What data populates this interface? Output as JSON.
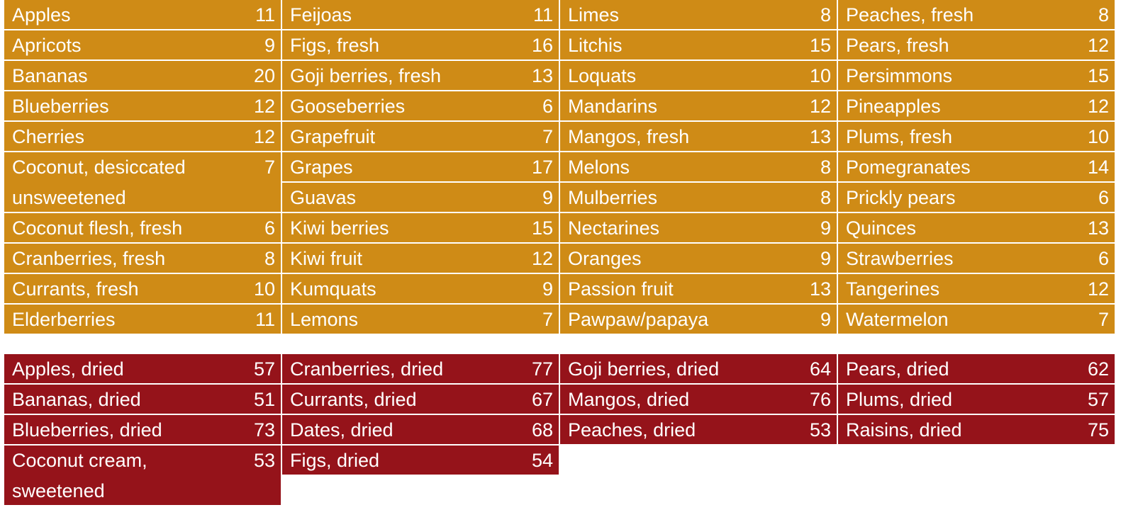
{
  "fresh": [
    [
      {
        "name": "Apples",
        "value": "11"
      },
      {
        "name": "Apricots",
        "value": "9"
      },
      {
        "name": "Bananas",
        "value": "20"
      },
      {
        "name": "Blueberries",
        "value": "12"
      },
      {
        "name": "Cherries",
        "value": "12"
      },
      {
        "name": "Coconut, desiccated unsweetened",
        "value": "7"
      },
      {
        "name": "Coconut flesh, fresh",
        "value": "6"
      },
      {
        "name": "Cranberries, fresh",
        "value": "8"
      },
      {
        "name": "Currants, fresh",
        "value": "10"
      },
      {
        "name": "Elderberries",
        "value": "11"
      }
    ],
    [
      {
        "name": "Feijoas",
        "value": "11"
      },
      {
        "name": "Figs, fresh",
        "value": "16"
      },
      {
        "name": "Goji berries, fresh",
        "value": "13"
      },
      {
        "name": "Gooseberries",
        "value": "6"
      },
      {
        "name": "Grapefruit",
        "value": "7"
      },
      {
        "name": "Grapes",
        "value": "17"
      },
      {
        "name": "Guavas",
        "value": "9"
      },
      {
        "name": "Kiwi berries",
        "value": "15"
      },
      {
        "name": "Kiwi fruit",
        "value": "12"
      },
      {
        "name": "Kumquats",
        "value": "9"
      },
      {
        "name": "Lemons",
        "value": "7"
      }
    ],
    [
      {
        "name": "Limes",
        "value": "8"
      },
      {
        "name": "Litchis",
        "value": "15"
      },
      {
        "name": "Loquats",
        "value": "10"
      },
      {
        "name": "Mandarins",
        "value": "12"
      },
      {
        "name": "Mangos, fresh",
        "value": "13"
      },
      {
        "name": "Melons",
        "value": "8"
      },
      {
        "name": "Mulberries",
        "value": "8"
      },
      {
        "name": "Nectarines",
        "value": "9"
      },
      {
        "name": "Oranges",
        "value": "9"
      },
      {
        "name": "Passion fruit",
        "value": "13"
      },
      {
        "name": "Pawpaw/papaya",
        "value": "9"
      }
    ],
    [
      {
        "name": "Peaches, fresh",
        "value": "8"
      },
      {
        "name": "Pears, fresh",
        "value": "12"
      },
      {
        "name": "Persimmons",
        "value": "15"
      },
      {
        "name": "Pineapples",
        "value": "12"
      },
      {
        "name": "Plums, fresh",
        "value": "10"
      },
      {
        "name": "Pomegranates",
        "value": "14"
      },
      {
        "name": "Prickly pears",
        "value": "6"
      },
      {
        "name": "Quinces",
        "value": "13"
      },
      {
        "name": "Strawberries",
        "value": "6"
      },
      {
        "name": "Tangerines",
        "value": "12"
      },
      {
        "name": "Watermelon",
        "value": "7"
      }
    ]
  ],
  "dried": [
    [
      {
        "name": "Apples, dried",
        "value": "57"
      },
      {
        "name": "Bananas, dried",
        "value": "51"
      },
      {
        "name": "Blueberries, dried",
        "value": "73"
      },
      {
        "name": "Coconut cream, sweetened",
        "value": "53"
      }
    ],
    [
      {
        "name": "Cranberries, dried",
        "value": "77"
      },
      {
        "name": "Currants, dried",
        "value": "67"
      },
      {
        "name": "Dates, dried",
        "value": "68"
      },
      {
        "name": "Figs, dried",
        "value": "54"
      }
    ],
    [
      {
        "name": "Goji berries, dried",
        "value": "64"
      },
      {
        "name": "Mangos, dried",
        "value": "76"
      },
      {
        "name": "Peaches, dried",
        "value": "53"
      }
    ],
    [
      {
        "name": "Pears, dried",
        "value": "62"
      },
      {
        "name": "Plums, dried",
        "value": "57"
      },
      {
        "name": "Raisins, dried",
        "value": "75"
      }
    ]
  ],
  "colors": {
    "fresh": "#cf8b16",
    "dried": "#95131a",
    "text": "#ffffff"
  }
}
